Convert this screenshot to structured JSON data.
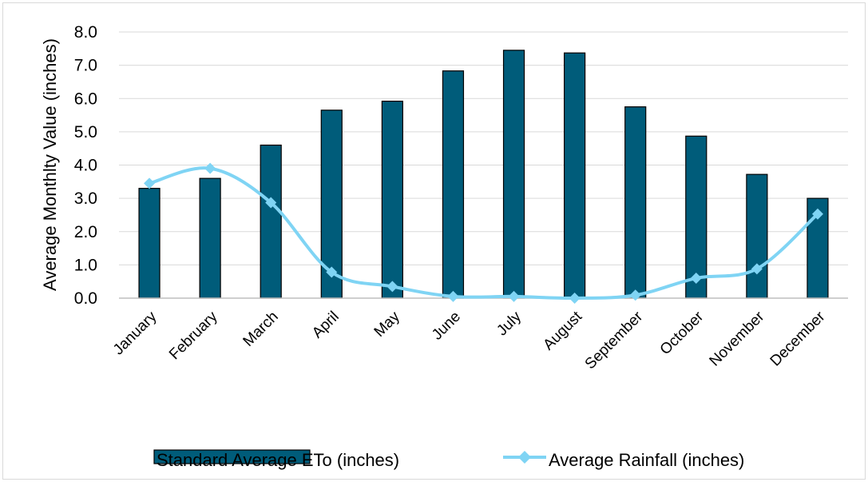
{
  "chart_data": {
    "type": "bar",
    "title": "",
    "xlabel": "",
    "ylabel": "Average Monthlty Value (inches)",
    "ylim": [
      0,
      8
    ],
    "yticks": [
      "0.0",
      "1.0",
      "2.0",
      "3.0",
      "4.0",
      "5.0",
      "6.0",
      "7.0",
      "8.0"
    ],
    "grid": true,
    "legend_position": "bottom",
    "categories": [
      "January",
      "February",
      "March",
      "April",
      "May",
      "June",
      "July",
      "August",
      "September",
      "October",
      "November",
      "December"
    ],
    "series": [
      {
        "name": "Standard Average ETo (inches)",
        "type": "bar",
        "color": "#005c7a",
        "values": [
          3.3,
          3.6,
          4.6,
          5.65,
          5.92,
          6.83,
          7.45,
          7.37,
          5.75,
          4.87,
          3.72,
          3.0
        ]
      },
      {
        "name": "Average Rainfall (inches)",
        "type": "line",
        "color": "#7fd4f4",
        "marker": "diamond",
        "values": [
          3.45,
          3.9,
          2.87,
          0.78,
          0.35,
          0.05,
          0.05,
          0.0,
          0.09,
          0.6,
          0.88,
          2.53
        ]
      }
    ]
  }
}
